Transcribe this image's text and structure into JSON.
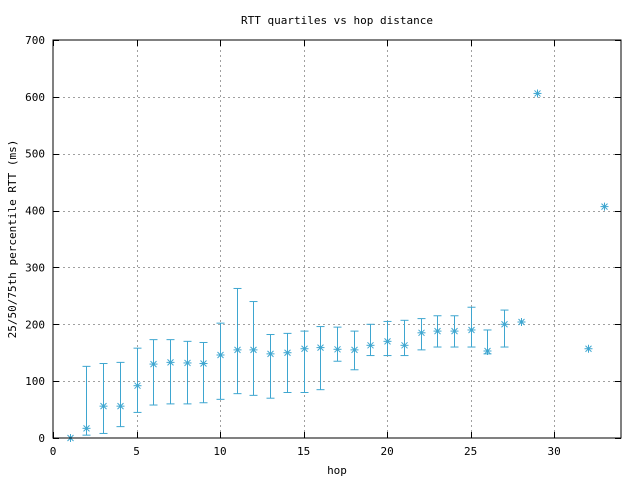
{
  "chart_data": {
    "type": "scatter",
    "title": "RTT quartiles vs hop distance",
    "xlabel": "hop",
    "ylabel": "25/50/75th percentile RTT (ms)",
    "xlim": [
      0,
      34
    ],
    "ylim": [
      0,
      700
    ],
    "x_ticks": [
      0,
      5,
      10,
      15,
      20,
      25,
      30
    ],
    "y_ticks": [
      0,
      100,
      200,
      300,
      400,
      500,
      600,
      700
    ],
    "grid": true,
    "marker": "asterisk",
    "error_bars": true,
    "color": "#3ea6d0",
    "points": [
      {
        "x": 1,
        "y": 0,
        "low": 0,
        "high": 0
      },
      {
        "x": 2,
        "y": 17,
        "low": 5,
        "high": 126
      },
      {
        "x": 3,
        "y": 56,
        "low": 8,
        "high": 131
      },
      {
        "x": 4,
        "y": 56,
        "low": 20,
        "high": 133
      },
      {
        "x": 5,
        "y": 92,
        "low": 45,
        "high": 158
      },
      {
        "x": 6,
        "y": 130,
        "low": 58,
        "high": 173
      },
      {
        "x": 7,
        "y": 133,
        "low": 60,
        "high": 173
      },
      {
        "x": 8,
        "y": 132,
        "low": 60,
        "high": 170
      },
      {
        "x": 9,
        "y": 131,
        "low": 62,
        "high": 168
      },
      {
        "x": 10,
        "y": 146,
        "low": 68,
        "high": 202
      },
      {
        "x": 11,
        "y": 155,
        "low": 78,
        "high": 263
      },
      {
        "x": 12,
        "y": 155,
        "low": 75,
        "high": 240
      },
      {
        "x": 13,
        "y": 148,
        "low": 70,
        "high": 182
      },
      {
        "x": 14,
        "y": 150,
        "low": 80,
        "high": 184
      },
      {
        "x": 15,
        "y": 157,
        "low": 80,
        "high": 188
      },
      {
        "x": 16,
        "y": 159,
        "low": 85,
        "high": 196
      },
      {
        "x": 17,
        "y": 156,
        "low": 135,
        "high": 195
      },
      {
        "x": 18,
        "y": 155,
        "low": 120,
        "high": 188
      },
      {
        "x": 19,
        "y": 163,
        "low": 145,
        "high": 200
      },
      {
        "x": 20,
        "y": 170,
        "low": 145,
        "high": 205
      },
      {
        "x": 21,
        "y": 163,
        "low": 145,
        "high": 207
      },
      {
        "x": 22,
        "y": 185,
        "low": 155,
        "high": 210
      },
      {
        "x": 23,
        "y": 188,
        "low": 160,
        "high": 215
      },
      {
        "x": 24,
        "y": 188,
        "low": 160,
        "high": 215
      },
      {
        "x": 25,
        "y": 190,
        "low": 160,
        "high": 230
      },
      {
        "x": 26,
        "y": 153,
        "low": 148,
        "high": 190
      },
      {
        "x": 27,
        "y": 200,
        "low": 160,
        "high": 225
      },
      {
        "x": 28,
        "y": 204,
        "low": 204,
        "high": 204
      },
      {
        "x": 29,
        "y": 606,
        "low": 606,
        "high": 606
      },
      {
        "x": 32,
        "y": 157,
        "low": 157,
        "high": 157
      },
      {
        "x": 33,
        "y": 407,
        "low": 407,
        "high": 407
      }
    ]
  }
}
